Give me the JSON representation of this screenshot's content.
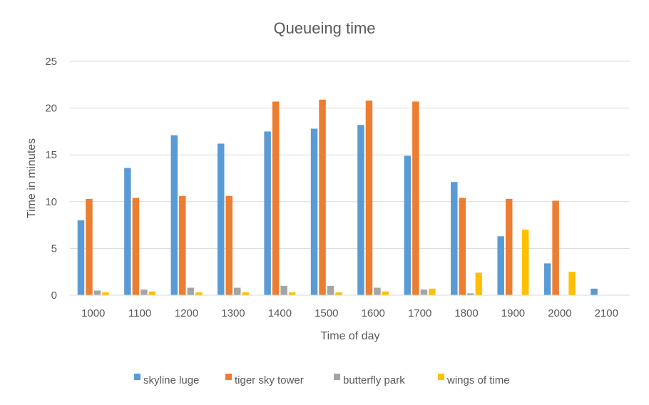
{
  "chart_data": {
    "type": "bar",
    "title": "Queueing time",
    "xlabel": "Time of day",
    "ylabel": "Time in minutes",
    "ylim": [
      0,
      25
    ],
    "yticks": [
      "0",
      "5",
      "10",
      "15",
      "20",
      "25"
    ],
    "grid": true,
    "legend_position": "bottom",
    "categories": [
      "1000",
      "1100",
      "1200",
      "1300",
      "1400",
      "1500",
      "1600",
      "1700",
      "1800",
      "1900",
      "2000",
      "2100"
    ],
    "series": [
      {
        "name": "skyline luge",
        "color": "#5B9BD5",
        "values": [
          8.0,
          13.6,
          17.1,
          16.2,
          17.5,
          17.8,
          18.2,
          14.9,
          12.1,
          6.3,
          3.4,
          0.7
        ]
      },
      {
        "name": "tiger sky tower",
        "color": "#ED7D31",
        "values": [
          10.3,
          10.4,
          10.6,
          10.6,
          20.7,
          20.9,
          20.8,
          20.7,
          10.4,
          10.3,
          10.1,
          0
        ]
      },
      {
        "name": "butterfly park",
        "color": "#A5A5A5",
        "values": [
          0.5,
          0.6,
          0.8,
          0.8,
          1.0,
          1.0,
          0.8,
          0.6,
          0.2,
          0,
          0,
          0
        ]
      },
      {
        "name": "wings of time",
        "color": "#FFC000",
        "values": [
          0.3,
          0.4,
          0.3,
          0.3,
          0.3,
          0.3,
          0.4,
          0.7,
          2.4,
          7.0,
          2.5,
          0
        ]
      }
    ]
  }
}
